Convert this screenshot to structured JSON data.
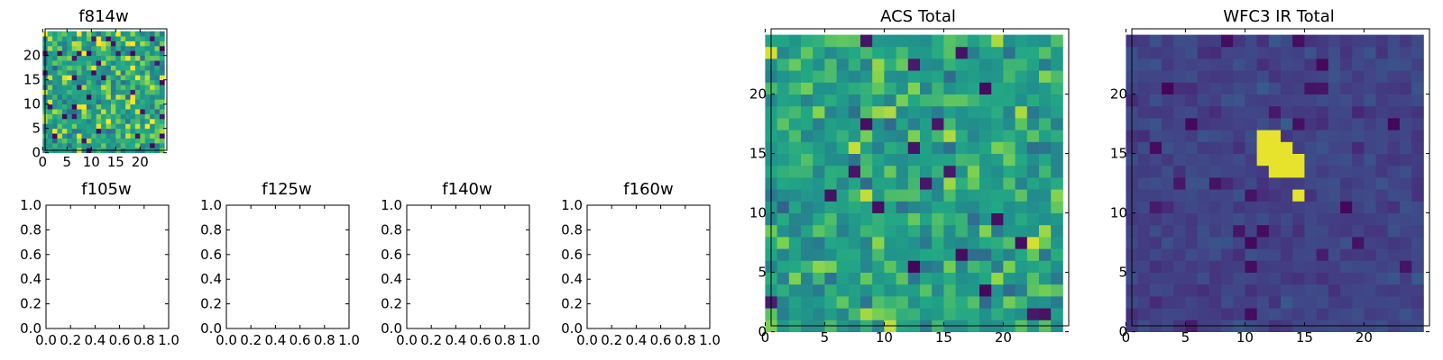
{
  "chart_data": [
    {
      "id": "f814w",
      "type": "heatmap",
      "title": "f814w",
      "grid_size": 25,
      "xlim": [
        0,
        25
      ],
      "ylim": [
        0,
        25
      ],
      "xticks": [
        0,
        5,
        10,
        15,
        20
      ],
      "yticks": [
        0,
        5,
        10,
        15,
        20
      ],
      "colormap": "viridis",
      "pattern": "noise",
      "noise_mean": 0.72,
      "noise_sd": 0.19,
      "dark_fraction": 0.05,
      "seed": 11,
      "source": null
    },
    {
      "id": "f105w",
      "type": "empty",
      "title": "f105w",
      "xlim": [
        0,
        1
      ],
      "ylim": [
        0,
        1
      ],
      "xticks": [
        "0.0",
        "0.2",
        "0.4",
        "0.6",
        "0.8",
        "1.0"
      ],
      "yticks": [
        "0.0",
        "0.2",
        "0.4",
        "0.6",
        "0.8",
        "1.0"
      ]
    },
    {
      "id": "f125w",
      "type": "empty",
      "title": "f125w",
      "xlim": [
        0,
        1
      ],
      "ylim": [
        0,
        1
      ],
      "xticks": [
        "0.0",
        "0.2",
        "0.4",
        "0.6",
        "0.8",
        "1.0"
      ],
      "yticks": [
        "0.0",
        "0.2",
        "0.4",
        "0.6",
        "0.8",
        "1.0"
      ]
    },
    {
      "id": "f140w",
      "type": "empty",
      "title": "f140w",
      "xlim": [
        0,
        1
      ],
      "ylim": [
        0,
        1
      ],
      "xticks": [
        "0.0",
        "0.2",
        "0.4",
        "0.6",
        "0.8",
        "1.0"
      ],
      "yticks": [
        "0.0",
        "0.2",
        "0.4",
        "0.6",
        "0.8",
        "1.0"
      ]
    },
    {
      "id": "f160w",
      "type": "empty",
      "title": "f160w",
      "xlim": [
        0,
        1
      ],
      "ylim": [
        0,
        1
      ],
      "xticks": [
        "0.0",
        "0.2",
        "0.4",
        "0.6",
        "0.8",
        "1.0"
      ],
      "yticks": [
        "0.0",
        "0.2",
        "0.4",
        "0.6",
        "0.8",
        "1.0"
      ]
    },
    {
      "id": "acs_total",
      "type": "heatmap",
      "title": "ACS Total",
      "grid_size": 25,
      "xlim": [
        0,
        25
      ],
      "ylim": [
        0,
        25
      ],
      "xticks": [
        0,
        5,
        10,
        15,
        20
      ],
      "yticks": [
        0,
        5,
        10,
        15,
        20
      ],
      "colormap": "viridis",
      "pattern": "noise",
      "noise_mean": 0.7,
      "noise_sd": 0.15,
      "dark_fraction": 0.035,
      "seed": 29,
      "source": null
    },
    {
      "id": "wfc3_ir_total",
      "type": "heatmap",
      "title": "WFC3 IR Total",
      "grid_size": 25,
      "xlim": [
        0,
        25
      ],
      "ylim": [
        0,
        25
      ],
      "xticks": [
        0,
        5,
        10,
        15,
        20
      ],
      "yticks": [
        0,
        5,
        10,
        15,
        20
      ],
      "colormap": "viridis",
      "pattern": "noise",
      "noise_mean": 0.25,
      "noise_sd": 0.06,
      "dark_fraction": 0.04,
      "seed": 47,
      "source": {
        "cells": [
          [
            11,
            16
          ],
          [
            12,
            16
          ],
          [
            11,
            15
          ],
          [
            12,
            15
          ],
          [
            13,
            15
          ],
          [
            11,
            14
          ],
          [
            12,
            14
          ],
          [
            13,
            14
          ],
          [
            14,
            14
          ],
          [
            12,
            13
          ],
          [
            13,
            13
          ],
          [
            14,
            13
          ],
          [
            14,
            11
          ]
        ],
        "value": 0.98
      }
    }
  ]
}
